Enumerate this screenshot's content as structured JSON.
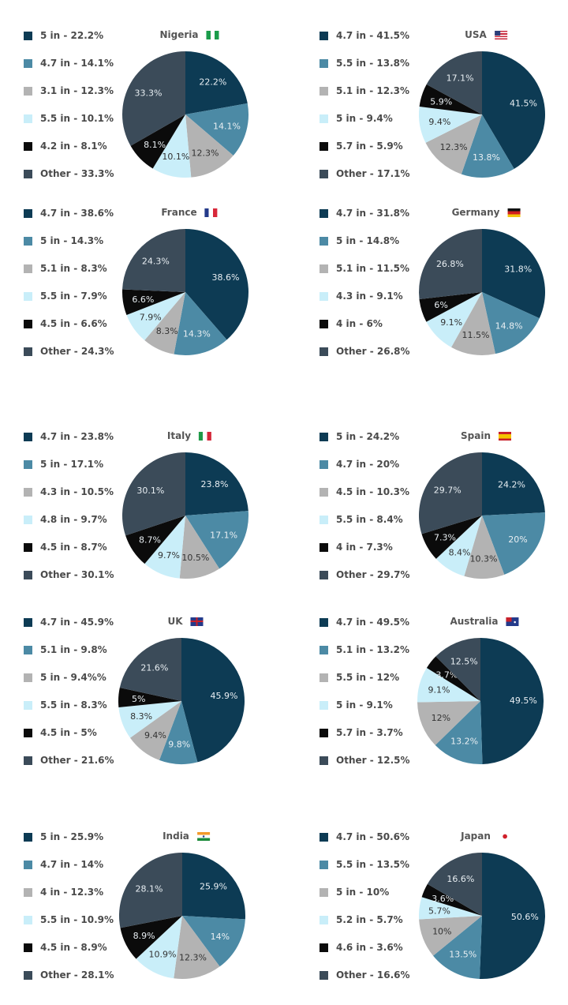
{
  "colors": [
    "#0d3b54",
    "#4c8aa5",
    "#b3b3b3",
    "#c9eef9",
    "#0b0b0b",
    "#3b4b59"
  ],
  "chart_data": [
    {
      "type": "pie",
      "title": "Nigeria",
      "flag": "nigeria-flag-icon",
      "labels": [
        "5 in",
        "4.7 in",
        "3.1 in",
        "5.5 in",
        "4.2 in",
        "Other"
      ],
      "values": [
        22.2,
        14.1,
        12.3,
        10.1,
        8.1,
        33.3
      ],
      "legend_text": [
        "5 in - 22.2%",
        "4.7 in - 14.1%",
        "3.1 in - 12.3%",
        "5.5 in - 10.1%",
        "4.2 in - 8.1%",
        "Other - 33.3%"
      ],
      "slice_labels": [
        "22.2%",
        "14.1%",
        "12.3%",
        "10.1%",
        "8.1%",
        "33.3%"
      ]
    },
    {
      "type": "pie",
      "title": "USA",
      "flag": "usa-flag-icon",
      "labels": [
        "4.7 in",
        "5.5 in",
        "5.1 in",
        "5 in",
        "5.7 in",
        "Other"
      ],
      "values": [
        41.5,
        13.8,
        12.3,
        9.4,
        5.9,
        17.1
      ],
      "legend_text": [
        "4.7 in - 41.5%",
        "5.5 in - 13.8%",
        "5.1 in - 12.3%",
        "5 in - 9.4%",
        "5.7 in - 5.9%",
        "Other - 17.1%"
      ],
      "slice_labels": [
        "41.5%",
        "13.8%",
        "12.3%",
        "9.4%",
        "5.9%",
        "17.1%"
      ]
    },
    {
      "type": "pie",
      "title": "France",
      "flag": "france-flag-icon",
      "labels": [
        "4.7 in",
        "5 in",
        "5.1 in",
        "5.5 in",
        "4.5 in",
        "Other"
      ],
      "values": [
        38.6,
        14.3,
        8.3,
        7.9,
        6.6,
        24.3
      ],
      "legend_text": [
        "4.7 in - 38.6%",
        "5 in - 14.3%",
        "5.1 in - 8.3%",
        "5.5 in - 7.9%",
        "4.5 in - 6.6%",
        "Other - 24.3%"
      ],
      "slice_labels": [
        "38.6%",
        "14.3%",
        "8.3%",
        "7.9%",
        "6.6%",
        "24.3%"
      ]
    },
    {
      "type": "pie",
      "title": "Germany",
      "flag": "germany-flag-icon",
      "labels": [
        "4.7 in",
        "5 in",
        "5.1 in",
        "4.3 in",
        "4 in",
        "Other"
      ],
      "values": [
        31.8,
        14.8,
        11.5,
        9.1,
        6,
        26.8
      ],
      "legend_text": [
        "4.7 in - 31.8%",
        "5 in - 14.8%",
        "5.1 in - 11.5%",
        "4.3 in - 9.1%",
        "4 in - 6%",
        "Other - 26.8%"
      ],
      "slice_labels": [
        "31.8%",
        "14.8%",
        "11.5%",
        "9.1%",
        "6%",
        "26.8%"
      ]
    },
    {
      "type": "pie",
      "title": "Italy",
      "flag": "italy-flag-icon",
      "labels": [
        "4.7 in",
        "5 in",
        "4.3 in",
        "4.8 in",
        "4.5 in",
        "Other"
      ],
      "values": [
        23.8,
        17.1,
        10.5,
        9.7,
        8.7,
        30.1
      ],
      "legend_text": [
        "4.7 in - 23.8%",
        "5 in - 17.1%",
        "4.3 in - 10.5%",
        "4.8 in - 9.7%",
        "4.5 in - 8.7%",
        "Other - 30.1%"
      ],
      "slice_labels": [
        "23.8%",
        "17.1%",
        "10.5%",
        "9.7%",
        "8.7%",
        "30.1%"
      ]
    },
    {
      "type": "pie",
      "title": "Spain",
      "flag": "spain-flag-icon",
      "labels": [
        "5 in",
        "4.7 in",
        "4.5 in",
        "5.5 in",
        "4 in",
        "Other"
      ],
      "values": [
        24.2,
        20,
        10.3,
        8.4,
        7.3,
        29.7
      ],
      "legend_text": [
        "5 in - 24.2%",
        "4.7 in - 20%",
        "4.5 in - 10.3%",
        "5.5 in - 8.4%",
        "4 in - 7.3%",
        "Other - 29.7%"
      ],
      "slice_labels": [
        "24.2%",
        "20%",
        "10.3%",
        "8.4%",
        "7.3%",
        "29.7%"
      ]
    },
    {
      "type": "pie",
      "title": "UK",
      "flag": "uk-flag-icon",
      "labels": [
        "4.7 in",
        "5.1 in",
        "5 in",
        "5.5 in",
        "4.5 in",
        "Other"
      ],
      "values": [
        45.9,
        9.8,
        9.4,
        8.3,
        5,
        21.6
      ],
      "legend_text": [
        "4.7 in - 45.9%",
        "5.1 in - 9.8%",
        "5 in - 9.4%%",
        "5.5 in - 8.3%",
        "4.5 in - 5%",
        "Other - 21.6%"
      ],
      "slice_labels": [
        "45.9%",
        "9.8%",
        "9.4%",
        "8.3%",
        "5%",
        "21.6%"
      ]
    },
    {
      "type": "pie",
      "title": "Australia",
      "flag": "australia-flag-icon",
      "labels": [
        "4.7 in",
        "5.1 in",
        "5.5 in",
        "5 in",
        "5.7 in",
        "Other"
      ],
      "values": [
        49.5,
        13.2,
        12,
        9.1,
        3.7,
        12.5
      ],
      "legend_text": [
        "4.7 in - 49.5%",
        "5.1 in - 13.2%",
        "5.5 in - 12%",
        "5 in - 9.1%",
        "5.7 in - 3.7%",
        "Other - 12.5%"
      ],
      "slice_labels": [
        "49.5%",
        "13.2%",
        "12%",
        "9.1%",
        "3.7%",
        "12.5%"
      ]
    },
    {
      "type": "pie",
      "title": "India",
      "flag": "india-flag-icon",
      "labels": [
        "5 in",
        "4.7 in",
        "4 in",
        "5.5 in",
        "4.5 in",
        "Other"
      ],
      "values": [
        25.9,
        14,
        12.3,
        10.9,
        8.9,
        28.1
      ],
      "legend_text": [
        "5 in - 25.9%",
        "4.7 in - 14%",
        "4 in - 12.3%",
        "5.5 in - 10.9%",
        "4.5 in - 8.9%",
        "Other - 28.1%"
      ],
      "slice_labels": [
        "25.9%",
        "14%",
        "12.3%",
        "10.9%",
        "8.9%",
        "28.1%"
      ]
    },
    {
      "type": "pie",
      "title": "Japan",
      "flag": "japan-flag-icon",
      "labels": [
        "4.7 in",
        "5.5 in",
        "5 in",
        "5.2 in",
        "4.6 in",
        "Other"
      ],
      "values": [
        50.6,
        13.5,
        10,
        5.7,
        3.6,
        16.6
      ],
      "legend_text": [
        "4.7 in - 50.6%",
        "5.5 in - 13.5%",
        "5 in - 10%",
        "5.2 in - 5.7%",
        "4.6 in - 3.6%",
        "Other - 16.6%"
      ],
      "slice_labels": [
        "50.6%",
        "13.5%",
        "10%",
        "5.7%",
        "3.6%",
        "16.6%"
      ]
    }
  ]
}
